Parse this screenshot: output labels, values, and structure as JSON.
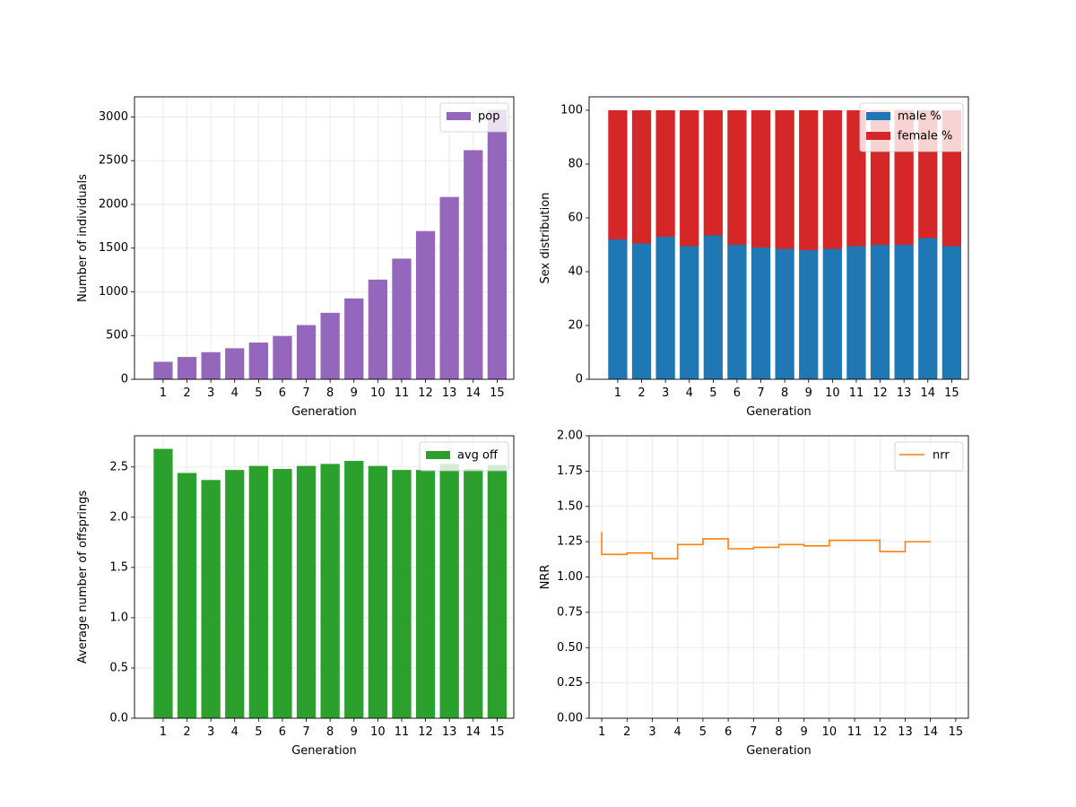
{
  "chart_data": [
    {
      "type": "bar",
      "xlabel": "Generation",
      "ylabel": "Number of individuals",
      "categories": [
        "1",
        "2",
        "3",
        "4",
        "5",
        "6",
        "7",
        "8",
        "9",
        "10",
        "11",
        "12",
        "13",
        "14",
        "15"
      ],
      "yticks": [
        "0",
        "500",
        "1000",
        "1500",
        "2000",
        "2500",
        "3000"
      ],
      "ylim": [
        0,
        3230
      ],
      "grid": true,
      "legend_position": "upper right",
      "series": [
        {
          "name": "pop",
          "color": "#9467bd",
          "values": [
            200,
            255,
            310,
            355,
            420,
            495,
            620,
            760,
            925,
            1140,
            1380,
            1695,
            2085,
            2620,
            3080
          ]
        }
      ]
    },
    {
      "type": "bar",
      "stacked": true,
      "xlabel": "Generation",
      "ylabel": "Sex distribution",
      "categories": [
        "1",
        "2",
        "3",
        "4",
        "5",
        "6",
        "7",
        "8",
        "9",
        "10",
        "11",
        "12",
        "13",
        "14",
        "15"
      ],
      "yticks": [
        "0",
        "20",
        "40",
        "60",
        "80",
        "100"
      ],
      "ylim": [
        0,
        105
      ],
      "grid": false,
      "legend_position": "upper right",
      "series": [
        {
          "name": "male %",
          "color": "#1f77b4",
          "values": [
            52,
            50.5,
            53,
            49.5,
            53.5,
            50,
            49,
            48.5,
            48,
            48.5,
            49.5,
            50,
            50,
            52.5,
            49.5
          ]
        },
        {
          "name": "female %",
          "color": "#d62728",
          "values": [
            48,
            49.5,
            47,
            50.5,
            46.5,
            50,
            51,
            51.5,
            52,
            51.5,
            50.5,
            50,
            50,
            47.5,
            50.5
          ]
        }
      ]
    },
    {
      "type": "bar",
      "xlabel": "Generation",
      "ylabel": "Average number of offsprings",
      "categories": [
        "1",
        "2",
        "3",
        "4",
        "5",
        "6",
        "7",
        "8",
        "9",
        "10",
        "11",
        "12",
        "13",
        "14",
        "15"
      ],
      "yticks": [
        "0.0",
        "0.5",
        "1.0",
        "1.5",
        "2.0",
        "2.5"
      ],
      "ylim": [
        0,
        2.81
      ],
      "grid": true,
      "legend_position": "upper right",
      "series": [
        {
          "name": "avg off",
          "color": "#2ca02c",
          "values": [
            2.68,
            2.44,
            2.37,
            2.47,
            2.51,
            2.48,
            2.51,
            2.53,
            2.56,
            2.51,
            2.47,
            2.47,
            2.53,
            2.48,
            2.52
          ]
        }
      ]
    },
    {
      "type": "line",
      "step": true,
      "xlabel": "Generation",
      "ylabel": "NRR",
      "xticks": [
        "1",
        "2",
        "3",
        "4",
        "5",
        "6",
        "7",
        "8",
        "9",
        "10",
        "11",
        "12",
        "13",
        "14",
        "15"
      ],
      "yticks": [
        "0.00",
        "0.25",
        "0.50",
        "0.75",
        "1.00",
        "1.25",
        "1.50",
        "1.75",
        "2.00"
      ],
      "xlim": [
        0.5,
        15.5
      ],
      "ylim": [
        0,
        2
      ],
      "grid": true,
      "legend_position": "upper right",
      "series": [
        {
          "name": "nrr",
          "color": "#ff7f0e",
          "x": [
            1,
            2,
            3,
            4,
            5,
            6,
            7,
            8,
            9,
            10,
            11,
            12,
            13,
            14
          ],
          "y": [
            1.16,
            1.17,
            1.13,
            1.23,
            1.27,
            1.2,
            1.21,
            1.23,
            1.22,
            1.26,
            1.26,
            1.18,
            1.25,
            1.25
          ],
          "start_value": 1.32
        }
      ]
    }
  ]
}
